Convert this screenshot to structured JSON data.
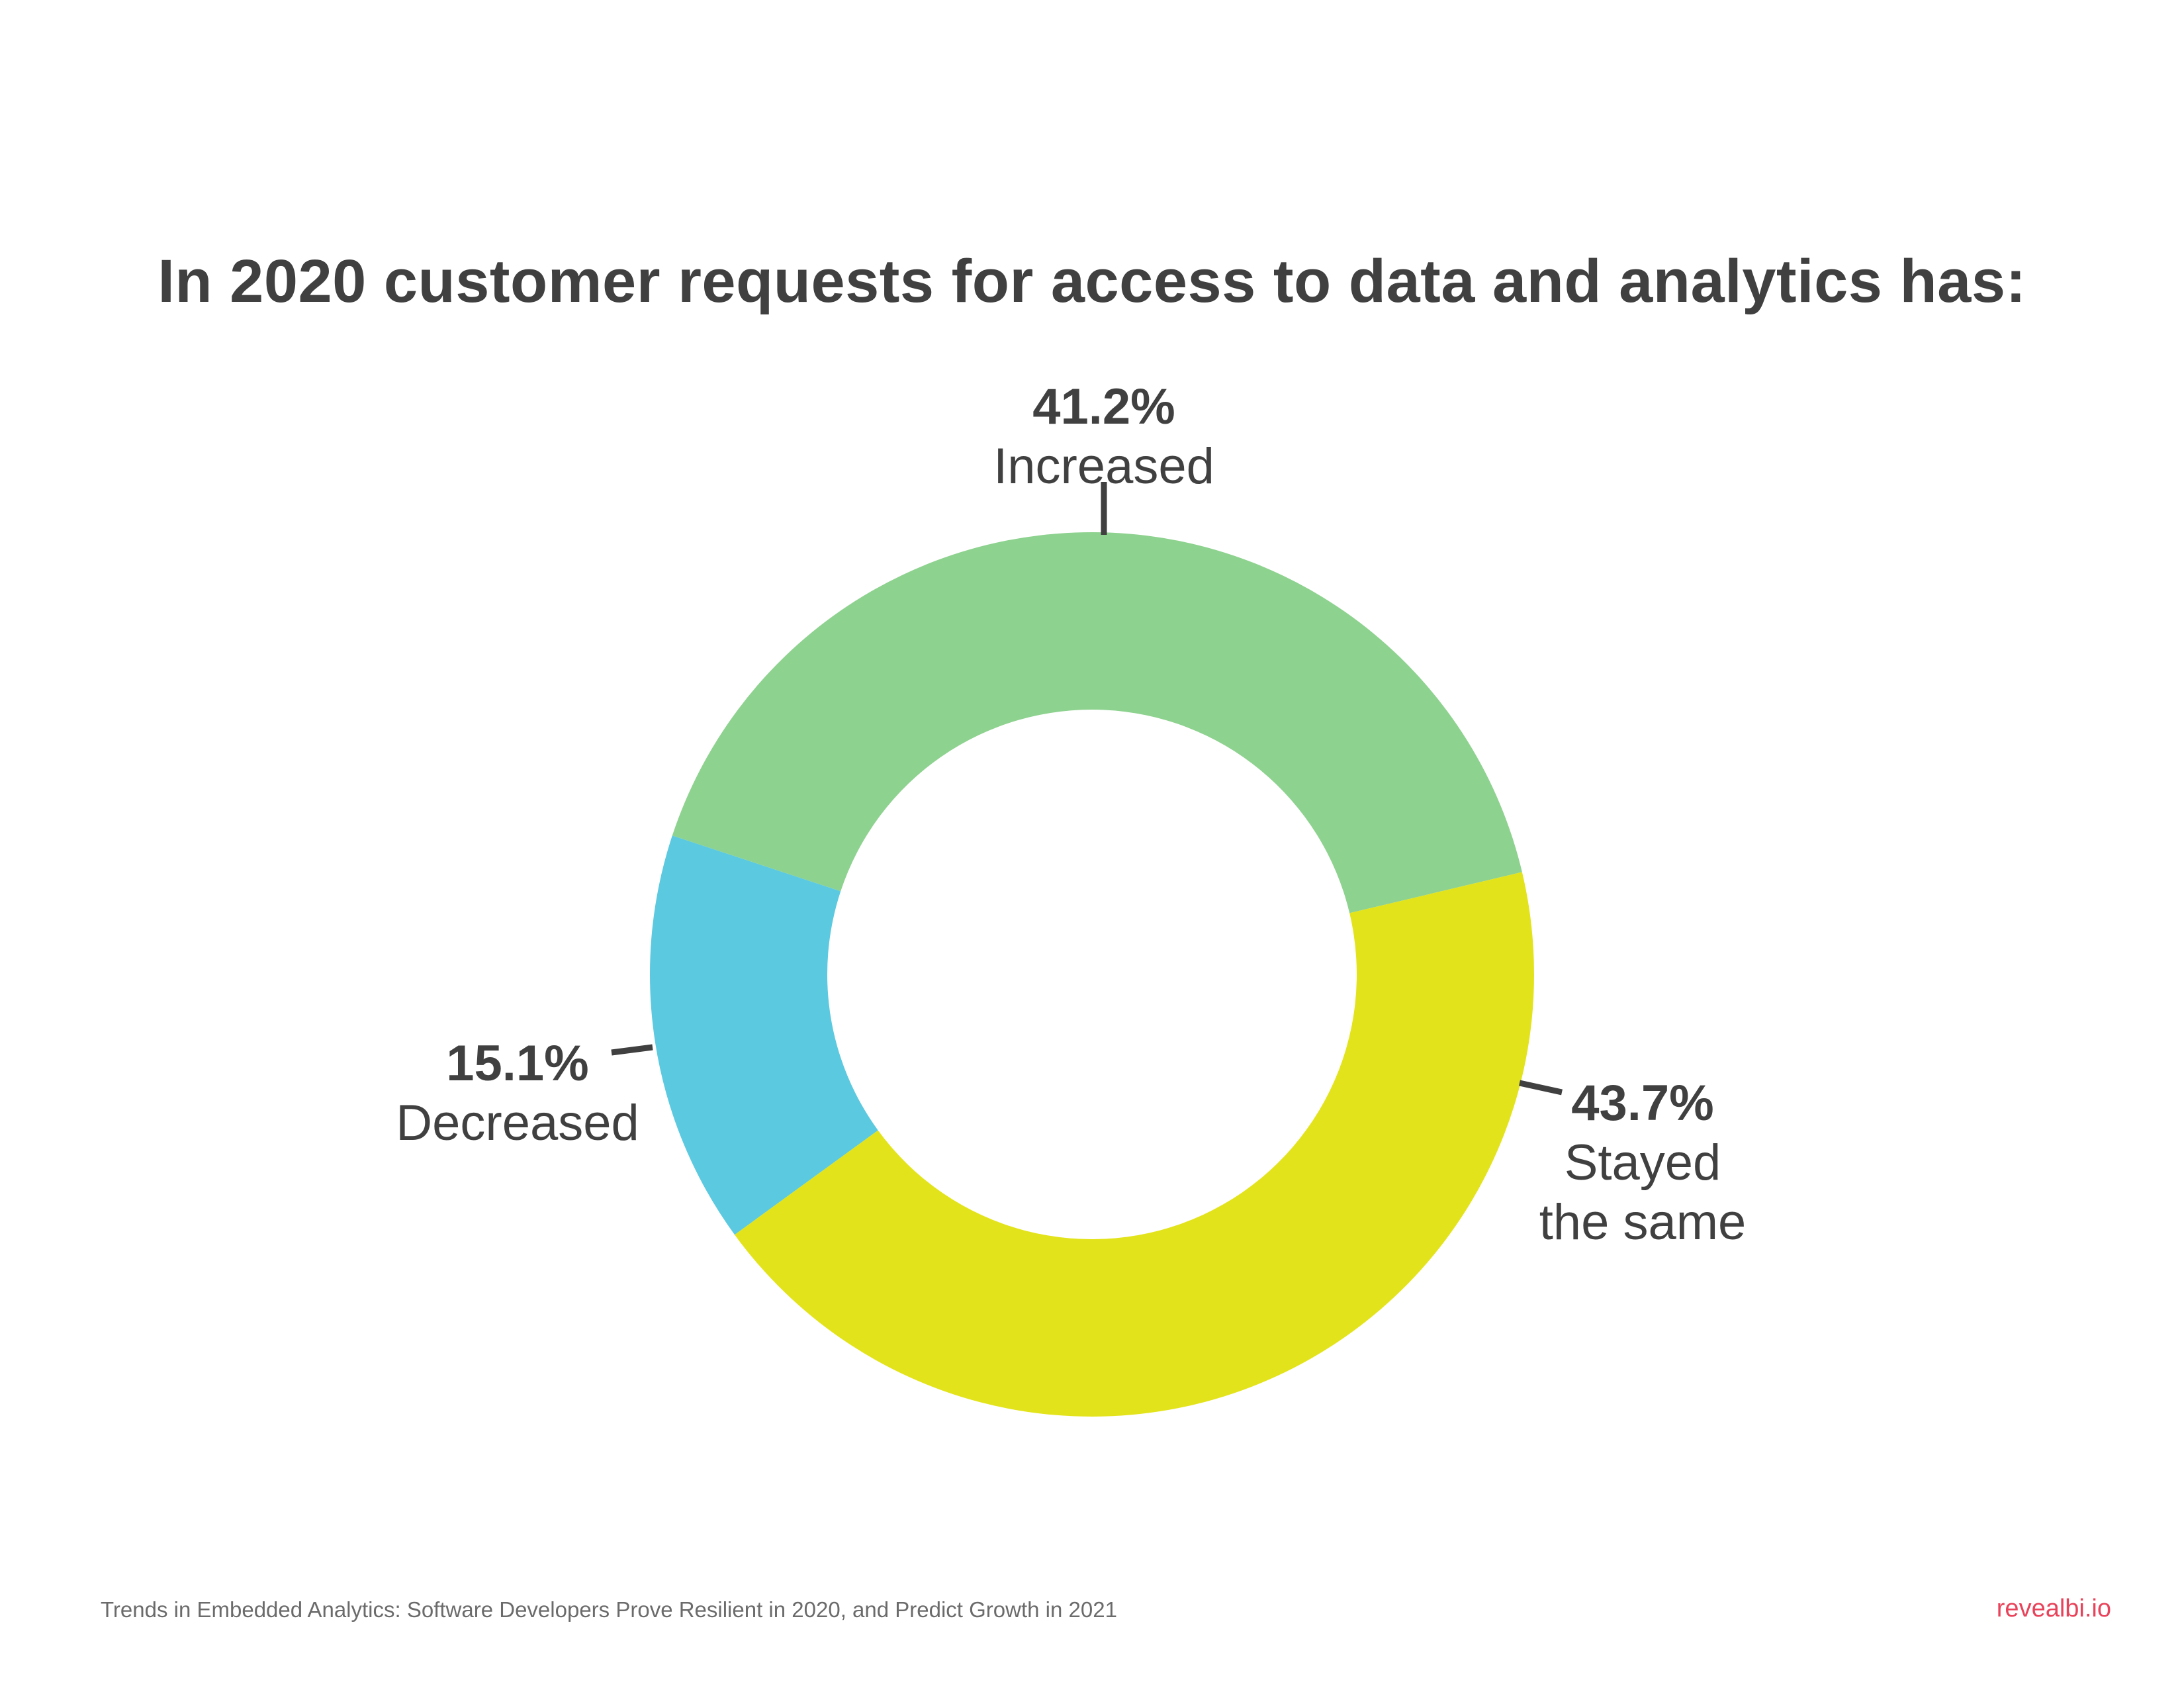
{
  "chart_data": {
    "type": "pie",
    "subtype": "donut",
    "title": "In 2020 customer requests for access to data and analytics has:",
    "slices": [
      {
        "label": "Increased",
        "value": 41.2,
        "display": "41.2%",
        "color": "#8ed28f"
      },
      {
        "label": "Stayed the same",
        "label_lines": [
          "Stayed",
          "the same"
        ],
        "value": 43.7,
        "display": "43.7%",
        "color": "#e3e31b"
      },
      {
        "label": "Decreased",
        "value": 15.1,
        "display": "15.1%",
        "color": "#5bc9df"
      }
    ],
    "start_angle": "top-center",
    "direction": "clockwise",
    "legend": "none"
  },
  "footer": {
    "source": "Trends in Embedded Analytics: Software Developers Prove Resilient in 2020, and Predict Growth in 2021",
    "brand": "revealbi.io"
  },
  "colors": {
    "text": "#404040",
    "brand": "#e8435a",
    "source_text": "#6b6b6b",
    "leader_line": "#404040"
  }
}
